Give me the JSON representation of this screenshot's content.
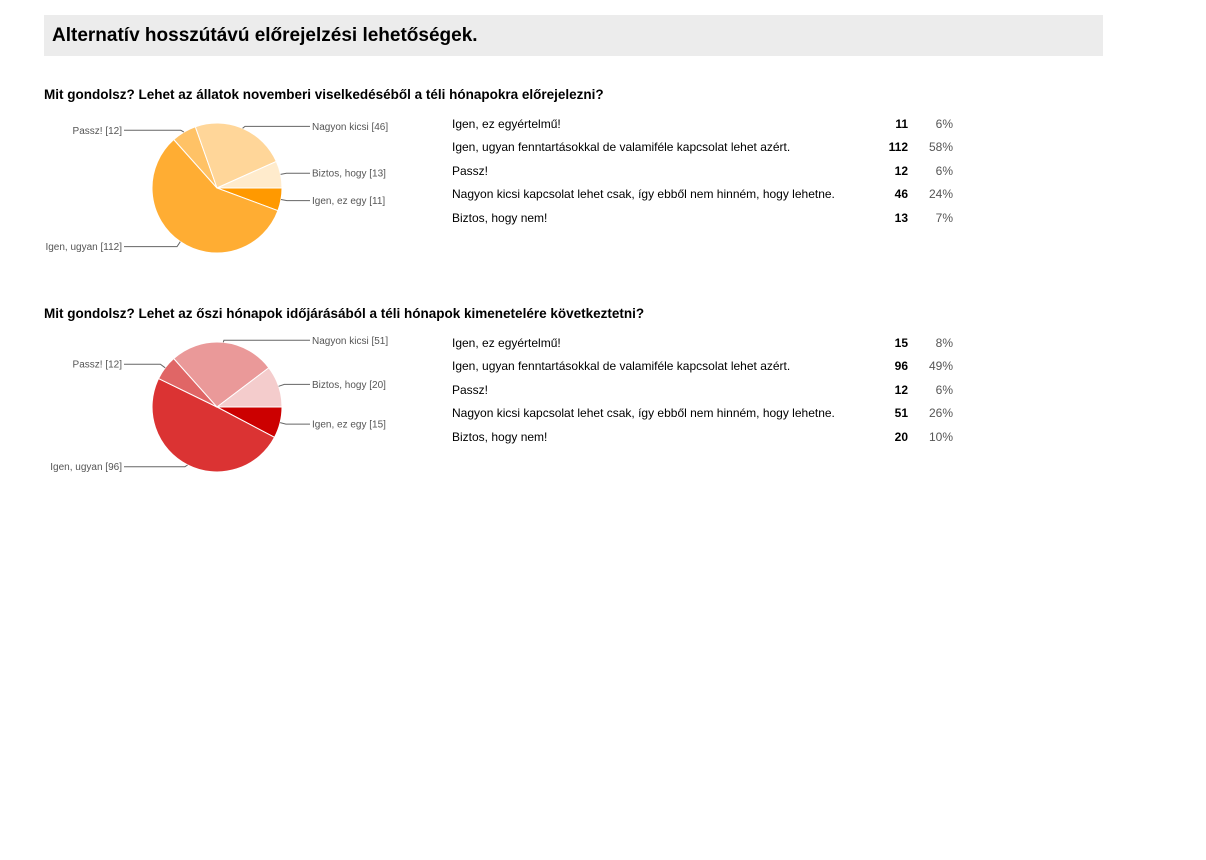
{
  "page": {
    "title": "Alternatív hosszútávú előrejelzési lehetőségek."
  },
  "chart_data": [
    {
      "type": "pie",
      "title": "Mit gondolsz? Lehet az állatok novemberi viselkedéséből a téli hónapokra előrejelezni?",
      "slices": [
        {
          "label": "Igen, ez egy [11]",
          "value": 11,
          "color": "#ff9900"
        },
        {
          "label": "Igen, ugyan [112]",
          "value": 112,
          "color": "#ffad33"
        },
        {
          "label": "Passz! [12]",
          "value": 12,
          "color": "#ffc266"
        },
        {
          "label": "Nagyon kicsi [46]",
          "value": 46,
          "color": "#ffd699"
        },
        {
          "label": "Biztos, hogy [13]",
          "value": 13,
          "color": "#ffebcc"
        }
      ],
      "rows": [
        {
          "answer": "Igen, ez egyértelmű!",
          "count": "11",
          "percent": "6%"
        },
        {
          "answer": "Igen, ugyan fenntartásokkal de valamiféle kapcsolat lehet azért.",
          "count": "112",
          "percent": "58%"
        },
        {
          "answer": "Passz!",
          "count": "12",
          "percent": "6%"
        },
        {
          "answer": "Nagyon kicsi kapcsolat lehet csak, így ebből nem hinném, hogy lehetne.",
          "count": "46",
          "percent": "24%"
        },
        {
          "answer": "Biztos, hogy nem!",
          "count": "13",
          "percent": "7%"
        }
      ]
    },
    {
      "type": "pie",
      "title": "Mit gondolsz? Lehet az őszi hónapok időjárásából a téli hónapok kimenetelére következtetni?",
      "slices": [
        {
          "label": "Igen, ez egy [15]",
          "value": 15,
          "color": "#cc0000"
        },
        {
          "label": "Igen, ugyan  [96]",
          "value": 96,
          "color": "#db3333"
        },
        {
          "label": "Passz! [12]",
          "value": 12,
          "color": "#e06666"
        },
        {
          "label": "Nagyon kicsi [51]",
          "value": 51,
          "color": "#ea9999"
        },
        {
          "label": "Biztos, hogy [20]",
          "value": 20,
          "color": "#f4cccc"
        }
      ],
      "rows": [
        {
          "answer": "Igen, ez egyértelmű!",
          "count": "15",
          "percent": "8%"
        },
        {
          "answer": "Igen, ugyan fenntartásokkal de valamiféle kapcsolat lehet azért.",
          "count": "96",
          "percent": "49%"
        },
        {
          "answer": "Passz!",
          "count": "12",
          "percent": "6%"
        },
        {
          "answer": "Nagyon kicsi kapcsolat lehet csak, így ebből nem hinném, hogy lehetne.",
          "count": "51",
          "percent": "26%"
        },
        {
          "answer": "Biztos, hogy nem!",
          "count": "20",
          "percent": "10%"
        }
      ]
    }
  ]
}
